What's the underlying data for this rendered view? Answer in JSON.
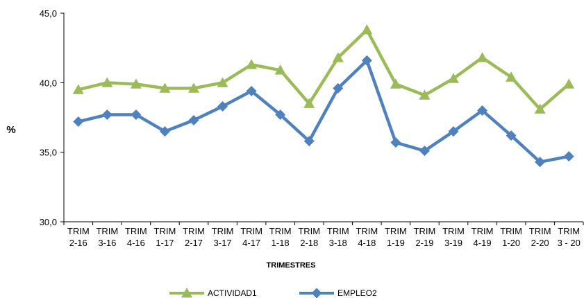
{
  "chart_data": {
    "type": "line",
    "title": "",
    "xlabel": "TRIMESTRES",
    "ylabel": "%",
    "ylim": [
      30,
      45
    ],
    "yticks": [
      "30,0",
      "35,0",
      "40,0",
      "45,0"
    ],
    "grid": false,
    "legend_position": "bottom",
    "categories": [
      [
        "TRIM",
        "2-16"
      ],
      [
        "TRIM",
        "3-16"
      ],
      [
        "TRIM",
        "4-16"
      ],
      [
        "TRIM",
        "1-17"
      ],
      [
        "TRIM",
        "2-17"
      ],
      [
        "TRIM",
        "3-17"
      ],
      [
        "TRIM",
        "4-17"
      ],
      [
        "TRIM",
        "1-18"
      ],
      [
        "TRIM",
        "2-18"
      ],
      [
        "TRIM",
        "3-18"
      ],
      [
        "TRIM",
        "4-18"
      ],
      [
        "TRIM",
        "1-19"
      ],
      [
        "TRIM",
        "2-19"
      ],
      [
        "TRIM",
        "3-19"
      ],
      [
        "TRIM",
        "4-19"
      ],
      [
        "TRIM",
        "1-20"
      ],
      [
        "TRIM",
        "2-20"
      ],
      [
        "TRIM",
        "3 - 20"
      ]
    ],
    "series": [
      {
        "name": "ACTIVIDAD1",
        "color": "#9bbb59",
        "marker": "triangle",
        "values": [
          39.5,
          40.0,
          39.9,
          39.6,
          39.6,
          40.0,
          41.3,
          40.9,
          38.5,
          41.8,
          43.8,
          39.9,
          39.1,
          40.3,
          41.8,
          40.4,
          38.1,
          39.9
        ]
      },
      {
        "name": "EMPLEO2",
        "color": "#4f81bd",
        "marker": "diamond",
        "values": [
          37.2,
          37.7,
          37.7,
          36.5,
          37.3,
          38.3,
          39.4,
          37.7,
          35.8,
          39.6,
          41.6,
          35.7,
          35.1,
          36.5,
          38.0,
          36.2,
          34.3,
          34.7
        ]
      }
    ]
  }
}
